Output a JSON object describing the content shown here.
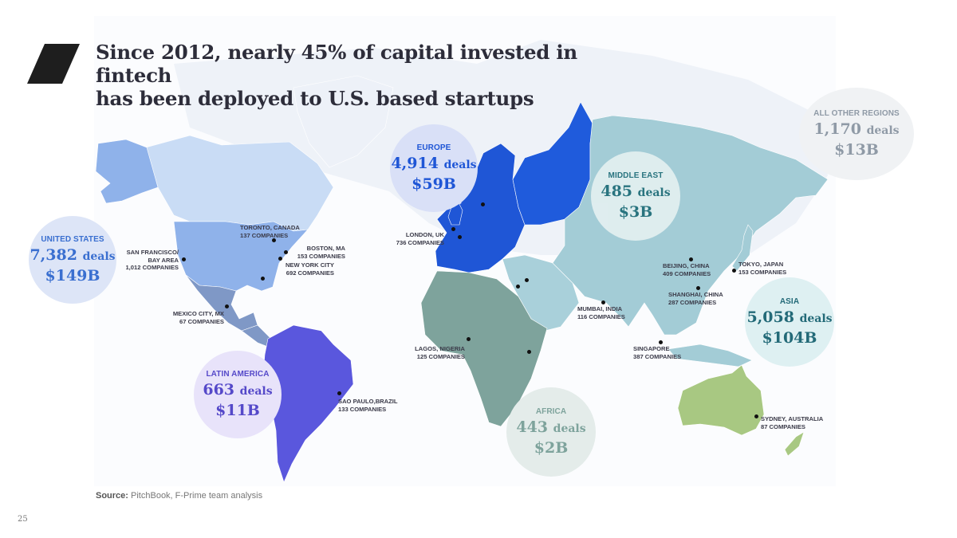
{
  "title_lines": [
    "Since 2012, nearly 45% of capital invested in fintech",
    "has been deployed to U.S. based startups"
  ],
  "deals_unit": "deals",
  "regions": [
    {
      "id": "united-states",
      "name": "UNITED STATES",
      "deals": "7,382",
      "value": "$149B",
      "color": "#3a6fd0",
      "bg": "#dde5f7"
    },
    {
      "id": "europe",
      "name": "EUROPE",
      "deals": "4,914",
      "value": "$59B",
      "color": "#1f56d6",
      "bg": "#d9e0f7"
    },
    {
      "id": "middle-east",
      "name": "MIDDLE EAST",
      "deals": "485",
      "value": "$3B",
      "color": "#1f6d78",
      "bg": "#e4f0f1"
    },
    {
      "id": "all-other-regions",
      "name": "ALL OTHER REGIONS",
      "deals": "1,170",
      "value": "$13B",
      "color": "#8f9aa6",
      "bg": "#f0f2f4"
    },
    {
      "id": "asia",
      "name": "ASIA",
      "deals": "5,058",
      "value": "$104B",
      "color": "#236a78",
      "bg": "#def0f2"
    },
    {
      "id": "latin-america",
      "name": "LATIN AMERICA",
      "deals": "663",
      "value": "$11B",
      "color": "#5549c9",
      "bg": "#e8e3fa"
    },
    {
      "id": "africa",
      "name": "AFRICA",
      "deals": "443",
      "value": "$2B",
      "color": "#7ea39c",
      "bg": "#e4ecea"
    }
  ],
  "cities": [
    {
      "id": "san-francisco",
      "lines": [
        "SAN FRANCISCO/",
        "BAY AREA",
        "1,012 COMPANIES"
      ]
    },
    {
      "id": "toronto",
      "lines": [
        "TORONTO, CANADA",
        "137 COMPANIES"
      ]
    },
    {
      "id": "boston",
      "lines": [
        "BOSTON, MA",
        "153 COMPANIES"
      ]
    },
    {
      "id": "new-york",
      "lines": [
        "NEW YORK CITY",
        "692 COMPANIES"
      ]
    },
    {
      "id": "mexico-city",
      "lines": [
        "MEXICO CITY, MX",
        "67 COMPANIES"
      ]
    },
    {
      "id": "sao-paulo",
      "lines": [
        "SAO PAULO,BRAZIL",
        "133 COMPANIES"
      ]
    },
    {
      "id": "london",
      "lines": [
        "LONDON, UK",
        "736 COMPANIES"
      ]
    },
    {
      "id": "lagos",
      "lines": [
        "LAGOS, NIGERIA",
        "125 COMPANIES"
      ]
    },
    {
      "id": "mumbai",
      "lines": [
        "MUMBAI, INDIA",
        "116 COMPANIES"
      ]
    },
    {
      "id": "beijing",
      "lines": [
        "BEIJING, CHINA",
        "409 COMPANIES"
      ]
    },
    {
      "id": "tokyo",
      "lines": [
        "TOKYO, JAPAN",
        "153 COMPANIES"
      ]
    },
    {
      "id": "shanghai",
      "lines": [
        "SHANGHAI, CHINA",
        "287 COMPANIES"
      ]
    },
    {
      "id": "singapore",
      "lines": [
        "SINGAPORE",
        "387 COMPANIES"
      ]
    },
    {
      "id": "sydney",
      "lines": [
        "SYDNEY, AUSTRALIA",
        "87 COMPANIES"
      ]
    }
  ],
  "source_label": "Source:",
  "source_text": "PitchBook, F-Prime team analysis",
  "page_number": "25",
  "map_colors": {
    "united_states": "#8fb2ea",
    "alaska": "#8fb2ea",
    "canada": "#c9dcf5",
    "greenland": "#edf1f8",
    "mexico": "#7f98c6",
    "central_america": "#7f98c6",
    "latin_america": "#5a57dd",
    "europe": "#1f56d6",
    "russia": "#1f5bdc",
    "middle_east": "#a9d0da",
    "africa": "#7ea39c",
    "asia": "#a3ccd6",
    "australia": "#a8c882"
  }
}
